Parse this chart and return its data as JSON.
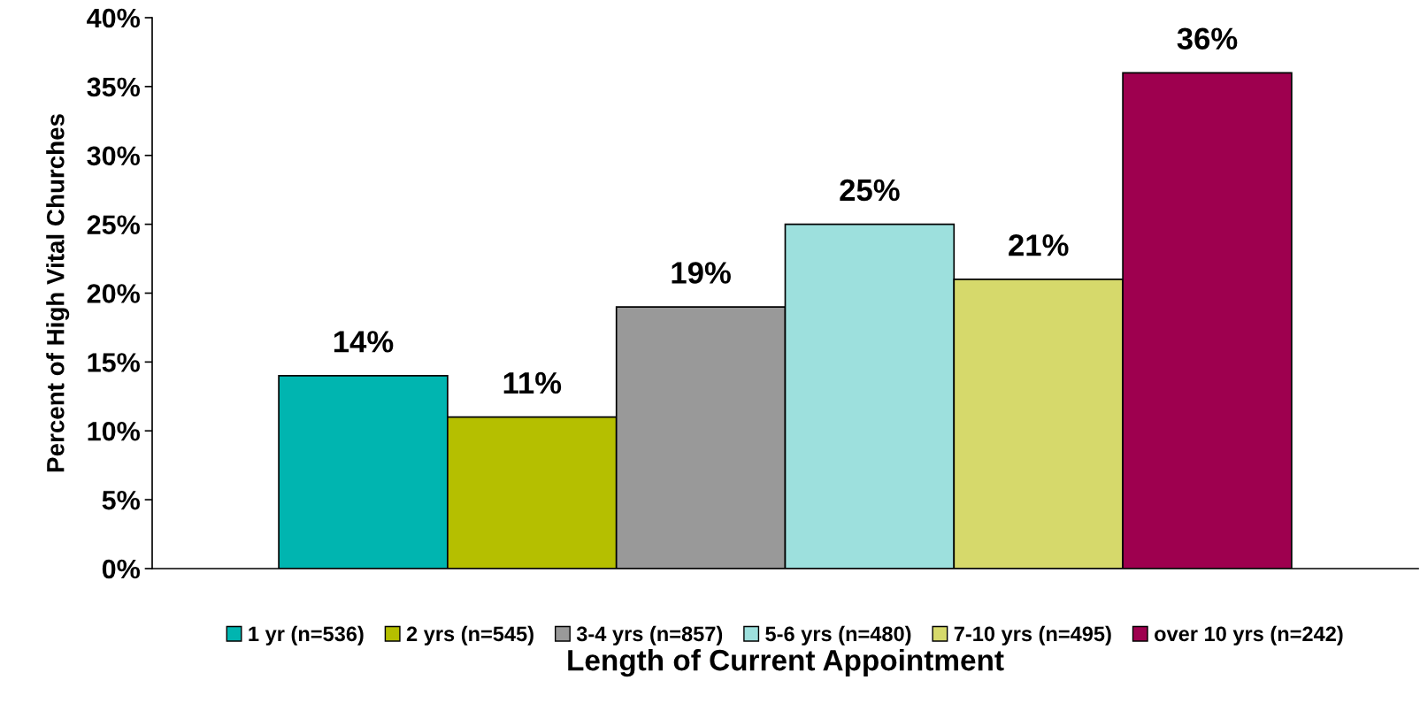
{
  "chart_data": {
    "type": "bar",
    "xlabel": "Length of Current Appointment",
    "ylabel": "Percent of High Vital Churches",
    "categories": [
      null
    ],
    "series": [
      {
        "name": "1 yr (n=536)",
        "color": "#00b5b0",
        "values": [
          14
        ],
        "value_labels": [
          "14%"
        ]
      },
      {
        "name": "2 yrs (n=545)",
        "color": "#b5bf00",
        "values": [
          11
        ],
        "value_labels": [
          "11%"
        ]
      },
      {
        "name": "3-4 yrs (n=857)",
        "color": "#999999",
        "values": [
          19
        ],
        "value_labels": [
          "19%"
        ]
      },
      {
        "name": "5-6 yrs (n=480)",
        "color": "#9de0dd",
        "values": [
          25
        ],
        "value_labels": [
          "25%"
        ]
      },
      {
        "name": "7-10 yrs (n=495)",
        "color": "#d6d96b",
        "values": [
          21
        ],
        "value_labels": [
          "21%"
        ]
      },
      {
        "name": "over 10 yrs (n=242)",
        "color": "#9e004f",
        "values": [
          36
        ],
        "value_labels": [
          "36%"
        ]
      }
    ],
    "ylim": [
      0,
      40
    ],
    "yticks": [
      {
        "value": 0,
        "label": "0%"
      },
      {
        "value": 5,
        "label": "5%"
      },
      {
        "value": 10,
        "label": "10%"
      },
      {
        "value": 15,
        "label": "15%"
      },
      {
        "value": 20,
        "label": "20%"
      },
      {
        "value": 25,
        "label": "25%"
      },
      {
        "value": 30,
        "label": "30%"
      },
      {
        "value": 35,
        "label": "35%"
      },
      {
        "value": 40,
        "label": "40%"
      }
    ],
    "grid": false,
    "legend": "bottom"
  }
}
